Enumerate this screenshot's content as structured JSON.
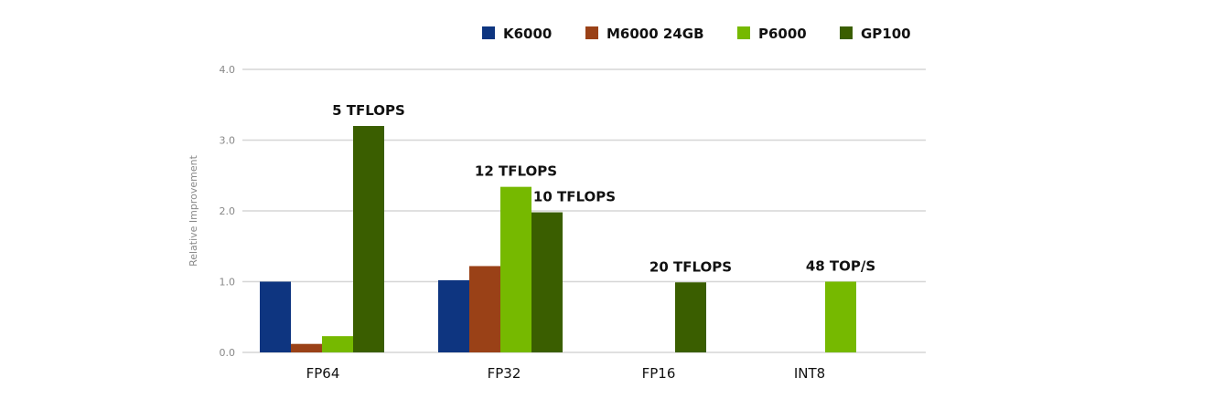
{
  "chart_data": {
    "type": "bar",
    "title": "",
    "xlabel": "",
    "ylabel": "Relative Improvement",
    "ylim": [
      0,
      4
    ],
    "yticks": [
      "0.0",
      "1.0",
      "2.0",
      "3.0",
      "4.0"
    ],
    "grid": true,
    "legend_position": "top",
    "categories": [
      "FP64",
      "FP32",
      "FP16",
      "INT8"
    ],
    "series": [
      {
        "name": "K6000",
        "color": "#0e3580",
        "values": [
          1.0,
          1.02,
          null,
          null
        ]
      },
      {
        "name": "M6000 24GB",
        "color": "#9a4117",
        "values": [
          0.12,
          1.22,
          null,
          null
        ]
      },
      {
        "name": "P6000",
        "color": "#76b900",
        "values": [
          0.23,
          2.34,
          null,
          1.0
        ]
      },
      {
        "name": "GP100",
        "color": "#3a5e00",
        "values": [
          3.2,
          1.98,
          0.99,
          null
        ]
      }
    ],
    "annotations": [
      {
        "text": "5 TFLOPS",
        "category": "FP64",
        "series": "GP100"
      },
      {
        "text": "12 TFLOPS",
        "category": "FP32",
        "series": "P6000"
      },
      {
        "text": "10 TFLOPS",
        "category": "FP32",
        "series": "GP100"
      },
      {
        "text": "20 TFLOPS",
        "category": "FP16",
        "series": "GP100"
      },
      {
        "text": "48 TOP/S",
        "category": "INT8",
        "series": "P6000"
      }
    ]
  }
}
